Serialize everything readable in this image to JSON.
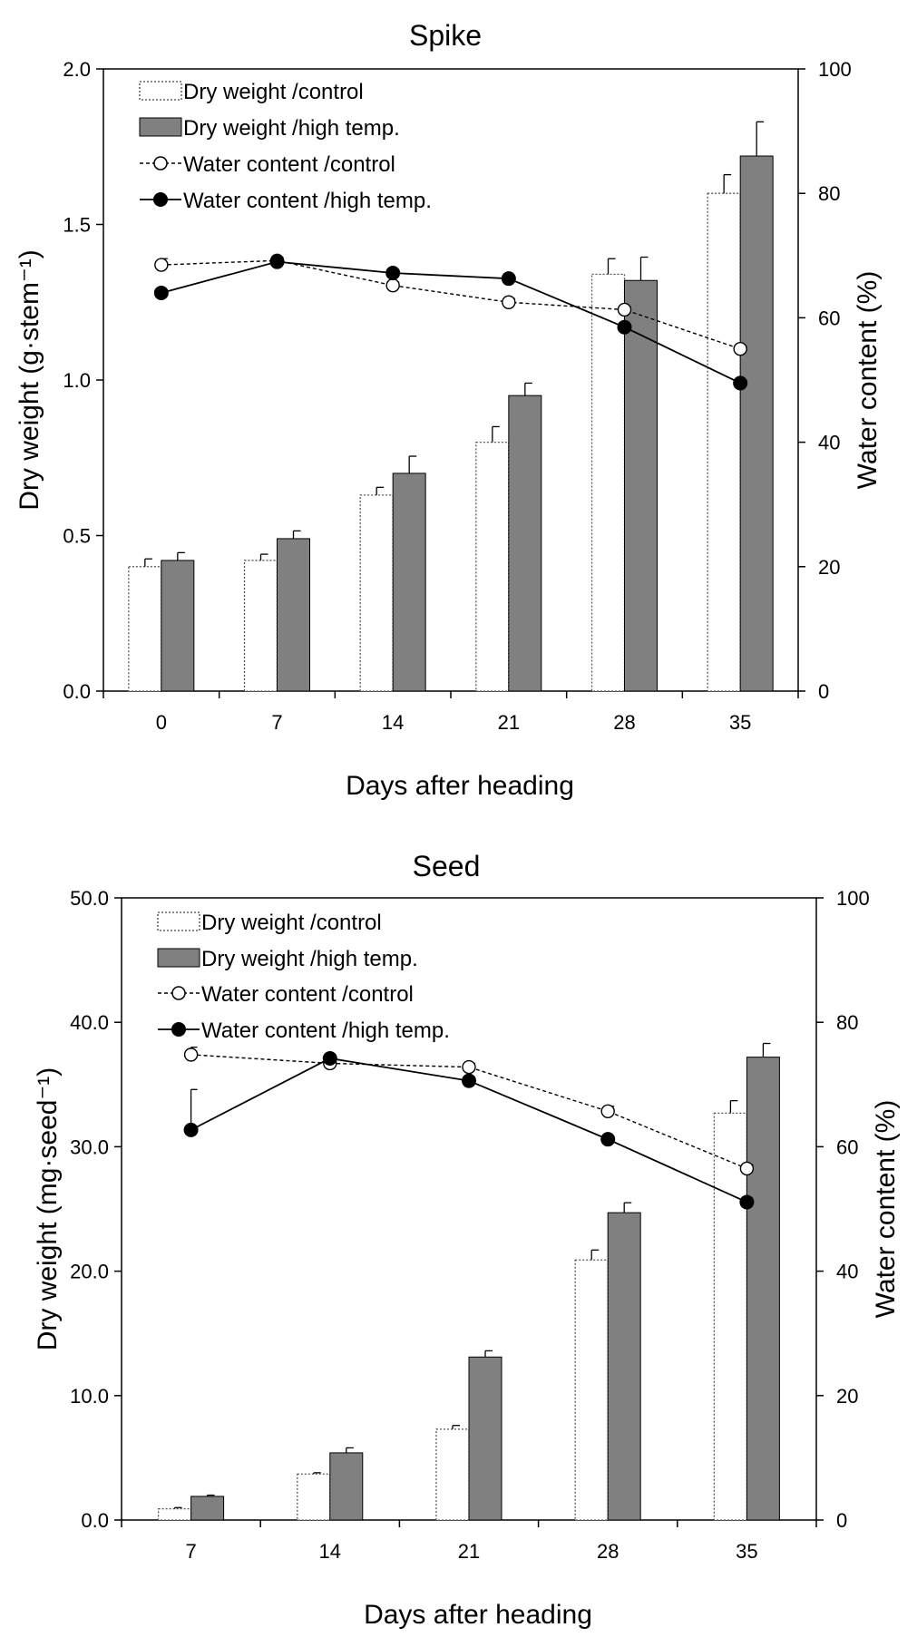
{
  "chart_data": [
    {
      "type": "bar",
      "title": "Spike",
      "xlabel": "Days after heading",
      "ylabel": "Dry weight (g·stem⁻¹)",
      "y2label": "Water content (%)",
      "categories": [
        "0",
        "7",
        "14",
        "21",
        "28",
        "35"
      ],
      "ylim": [
        0,
        2.0
      ],
      "y2lim": [
        0,
        100
      ],
      "yticks": [
        "0.0",
        "0.5",
        "1.0",
        "1.5",
        "2.0"
      ],
      "y2ticks": [
        "0",
        "20",
        "40",
        "60",
        "80",
        "100"
      ],
      "legend_position": "top-left",
      "series": [
        {
          "name": "Dry weight /control",
          "kind": "bar",
          "style": "dotted-white",
          "axis": "left",
          "values": [
            0.4,
            0.42,
            0.63,
            0.8,
            1.34,
            1.6
          ],
          "errors": [
            0.025,
            0.02,
            0.025,
            0.05,
            0.05,
            0.06
          ]
        },
        {
          "name": "Dry weight /high temp.",
          "kind": "bar",
          "style": "solid-gray",
          "axis": "left",
          "values": [
            0.42,
            0.49,
            0.7,
            0.95,
            1.32,
            1.72
          ],
          "errors": [
            0.025,
            0.025,
            0.055,
            0.04,
            0.075,
            0.11
          ]
        },
        {
          "name": "Water content /control",
          "kind": "line",
          "style": "dashed-open",
          "axis": "right",
          "values": [
            68.5,
            69.2,
            65.2,
            62.5,
            61.3,
            55.0
          ],
          "errors": [
            1.0,
            0.5,
            0.5,
            0.6,
            0.5,
            0.5
          ]
        },
        {
          "name": "Water content /high temp.",
          "kind": "line",
          "style": "solid-filled",
          "axis": "right",
          "values": [
            64.0,
            69.0,
            67.2,
            66.3,
            58.5,
            49.5
          ],
          "errors": [
            0.5,
            0.5,
            0.4,
            0.4,
            0.5,
            0.5
          ]
        }
      ]
    },
    {
      "type": "bar",
      "title": "Seed",
      "xlabel": "Days after heading",
      "ylabel": "Dry weight (mg·seed⁻¹)",
      "y2label": "Water content (%)",
      "categories": [
        "7",
        "14",
        "21",
        "28",
        "35"
      ],
      "ylim": [
        0,
        50
      ],
      "y2lim": [
        0,
        100
      ],
      "yticks": [
        "0.0",
        "10.0",
        "20.0",
        "30.0",
        "40.0",
        "50.0"
      ],
      "y2ticks": [
        "0",
        "20",
        "40",
        "60",
        "80",
        "100"
      ],
      "legend_position": "top-left",
      "series": [
        {
          "name": "Dry weight /control",
          "kind": "bar",
          "style": "dotted-white",
          "axis": "left",
          "values": [
            0.9,
            3.7,
            7.3,
            20.9,
            32.7
          ],
          "errors": [
            0.1,
            0.1,
            0.3,
            0.8,
            1.0
          ]
        },
        {
          "name": "Dry weight /high temp.",
          "kind": "bar",
          "style": "solid-gray",
          "axis": "left",
          "values": [
            1.9,
            5.4,
            13.1,
            24.7,
            37.2
          ],
          "errors": [
            0.1,
            0.4,
            0.5,
            0.8,
            1.1
          ]
        },
        {
          "name": "Water content /control",
          "kind": "line",
          "style": "dashed-open",
          "axis": "right",
          "values": [
            74.8,
            73.4,
            72.8,
            65.7,
            56.5
          ],
          "errors": [
            1.2,
            0.6,
            0.6,
            0.8,
            0.6
          ]
        },
        {
          "name": "Water content /high temp.",
          "kind": "line",
          "style": "solid-filled",
          "axis": "right",
          "values": [
            62.7,
            74.2,
            70.6,
            61.2,
            51.1
          ],
          "errors": [
            6.5,
            0.5,
            0.6,
            0.5,
            0.6
          ]
        }
      ]
    }
  ]
}
